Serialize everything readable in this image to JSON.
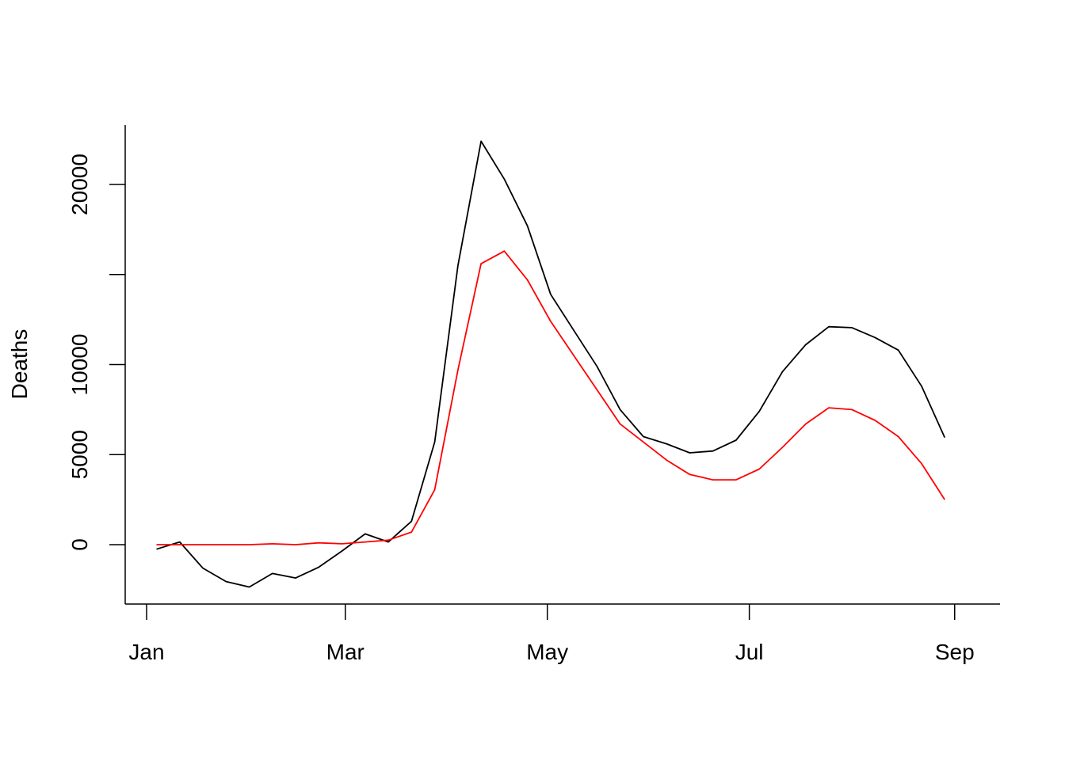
{
  "chart_data": {
    "type": "line",
    "title": "",
    "xlabel": "",
    "ylabel": "Deaths",
    "xlim": [
      "2020-01-01",
      "2020-09-08"
    ],
    "ylim": [
      -3200,
      23100
    ],
    "yticks": [
      0,
      5000,
      10000,
      15000,
      20000
    ],
    "ytick_labels": [
      "0",
      "5000",
      "10000",
      "",
      "20000"
    ],
    "xticks": [
      {
        "date": "2020-01-01",
        "label": "Jan"
      },
      {
        "date": "2020-03-01",
        "label": "Mar"
      },
      {
        "date": "2020-05-01",
        "label": "May"
      },
      {
        "date": "2020-07-01",
        "label": "Jul"
      },
      {
        "date": "2020-09-01",
        "label": "Sep"
      }
    ],
    "grid": false,
    "legend": "none",
    "x": [
      "2020-01-04",
      "2020-01-11",
      "2020-01-18",
      "2020-01-25",
      "2020-02-01",
      "2020-02-08",
      "2020-02-15",
      "2020-02-22",
      "2020-02-29",
      "2020-03-07",
      "2020-03-14",
      "2020-03-21",
      "2020-03-28",
      "2020-04-04",
      "2020-04-11",
      "2020-04-18",
      "2020-04-25",
      "2020-05-02",
      "2020-05-09",
      "2020-05-16",
      "2020-05-23",
      "2020-05-30",
      "2020-06-06",
      "2020-06-13",
      "2020-06-20",
      "2020-06-27",
      "2020-07-04",
      "2020-07-11",
      "2020-07-18",
      "2020-07-25",
      "2020-08-01",
      "2020-08-08",
      "2020-08-15",
      "2020-08-22",
      "2020-08-29"
    ],
    "series": [
      {
        "color": "#000000",
        "values": [
          -250,
          150,
          -1300,
          -2050,
          -2350,
          -1600,
          -1850,
          -1250,
          -350,
          600,
          150,
          1300,
          5700,
          15500,
          22400,
          20300,
          17700,
          13900,
          11900,
          9900,
          7500,
          6000,
          5600,
          5100,
          5200,
          5800,
          7400,
          9600,
          11100,
          12100,
          12050,
          11500,
          10800,
          8800,
          5950
        ]
      },
      {
        "color": "#ff0000",
        "values": [
          0,
          0,
          0,
          0,
          0,
          50,
          0,
          100,
          50,
          150,
          250,
          700,
          3050,
          9700,
          15600,
          16300,
          14700,
          12400,
          10500,
          8600,
          6700,
          5700,
          4700,
          3900,
          3600,
          3600,
          4200,
          5400,
          6700,
          7600,
          7500,
          6900,
          6000,
          4500,
          2500
        ]
      }
    ]
  }
}
